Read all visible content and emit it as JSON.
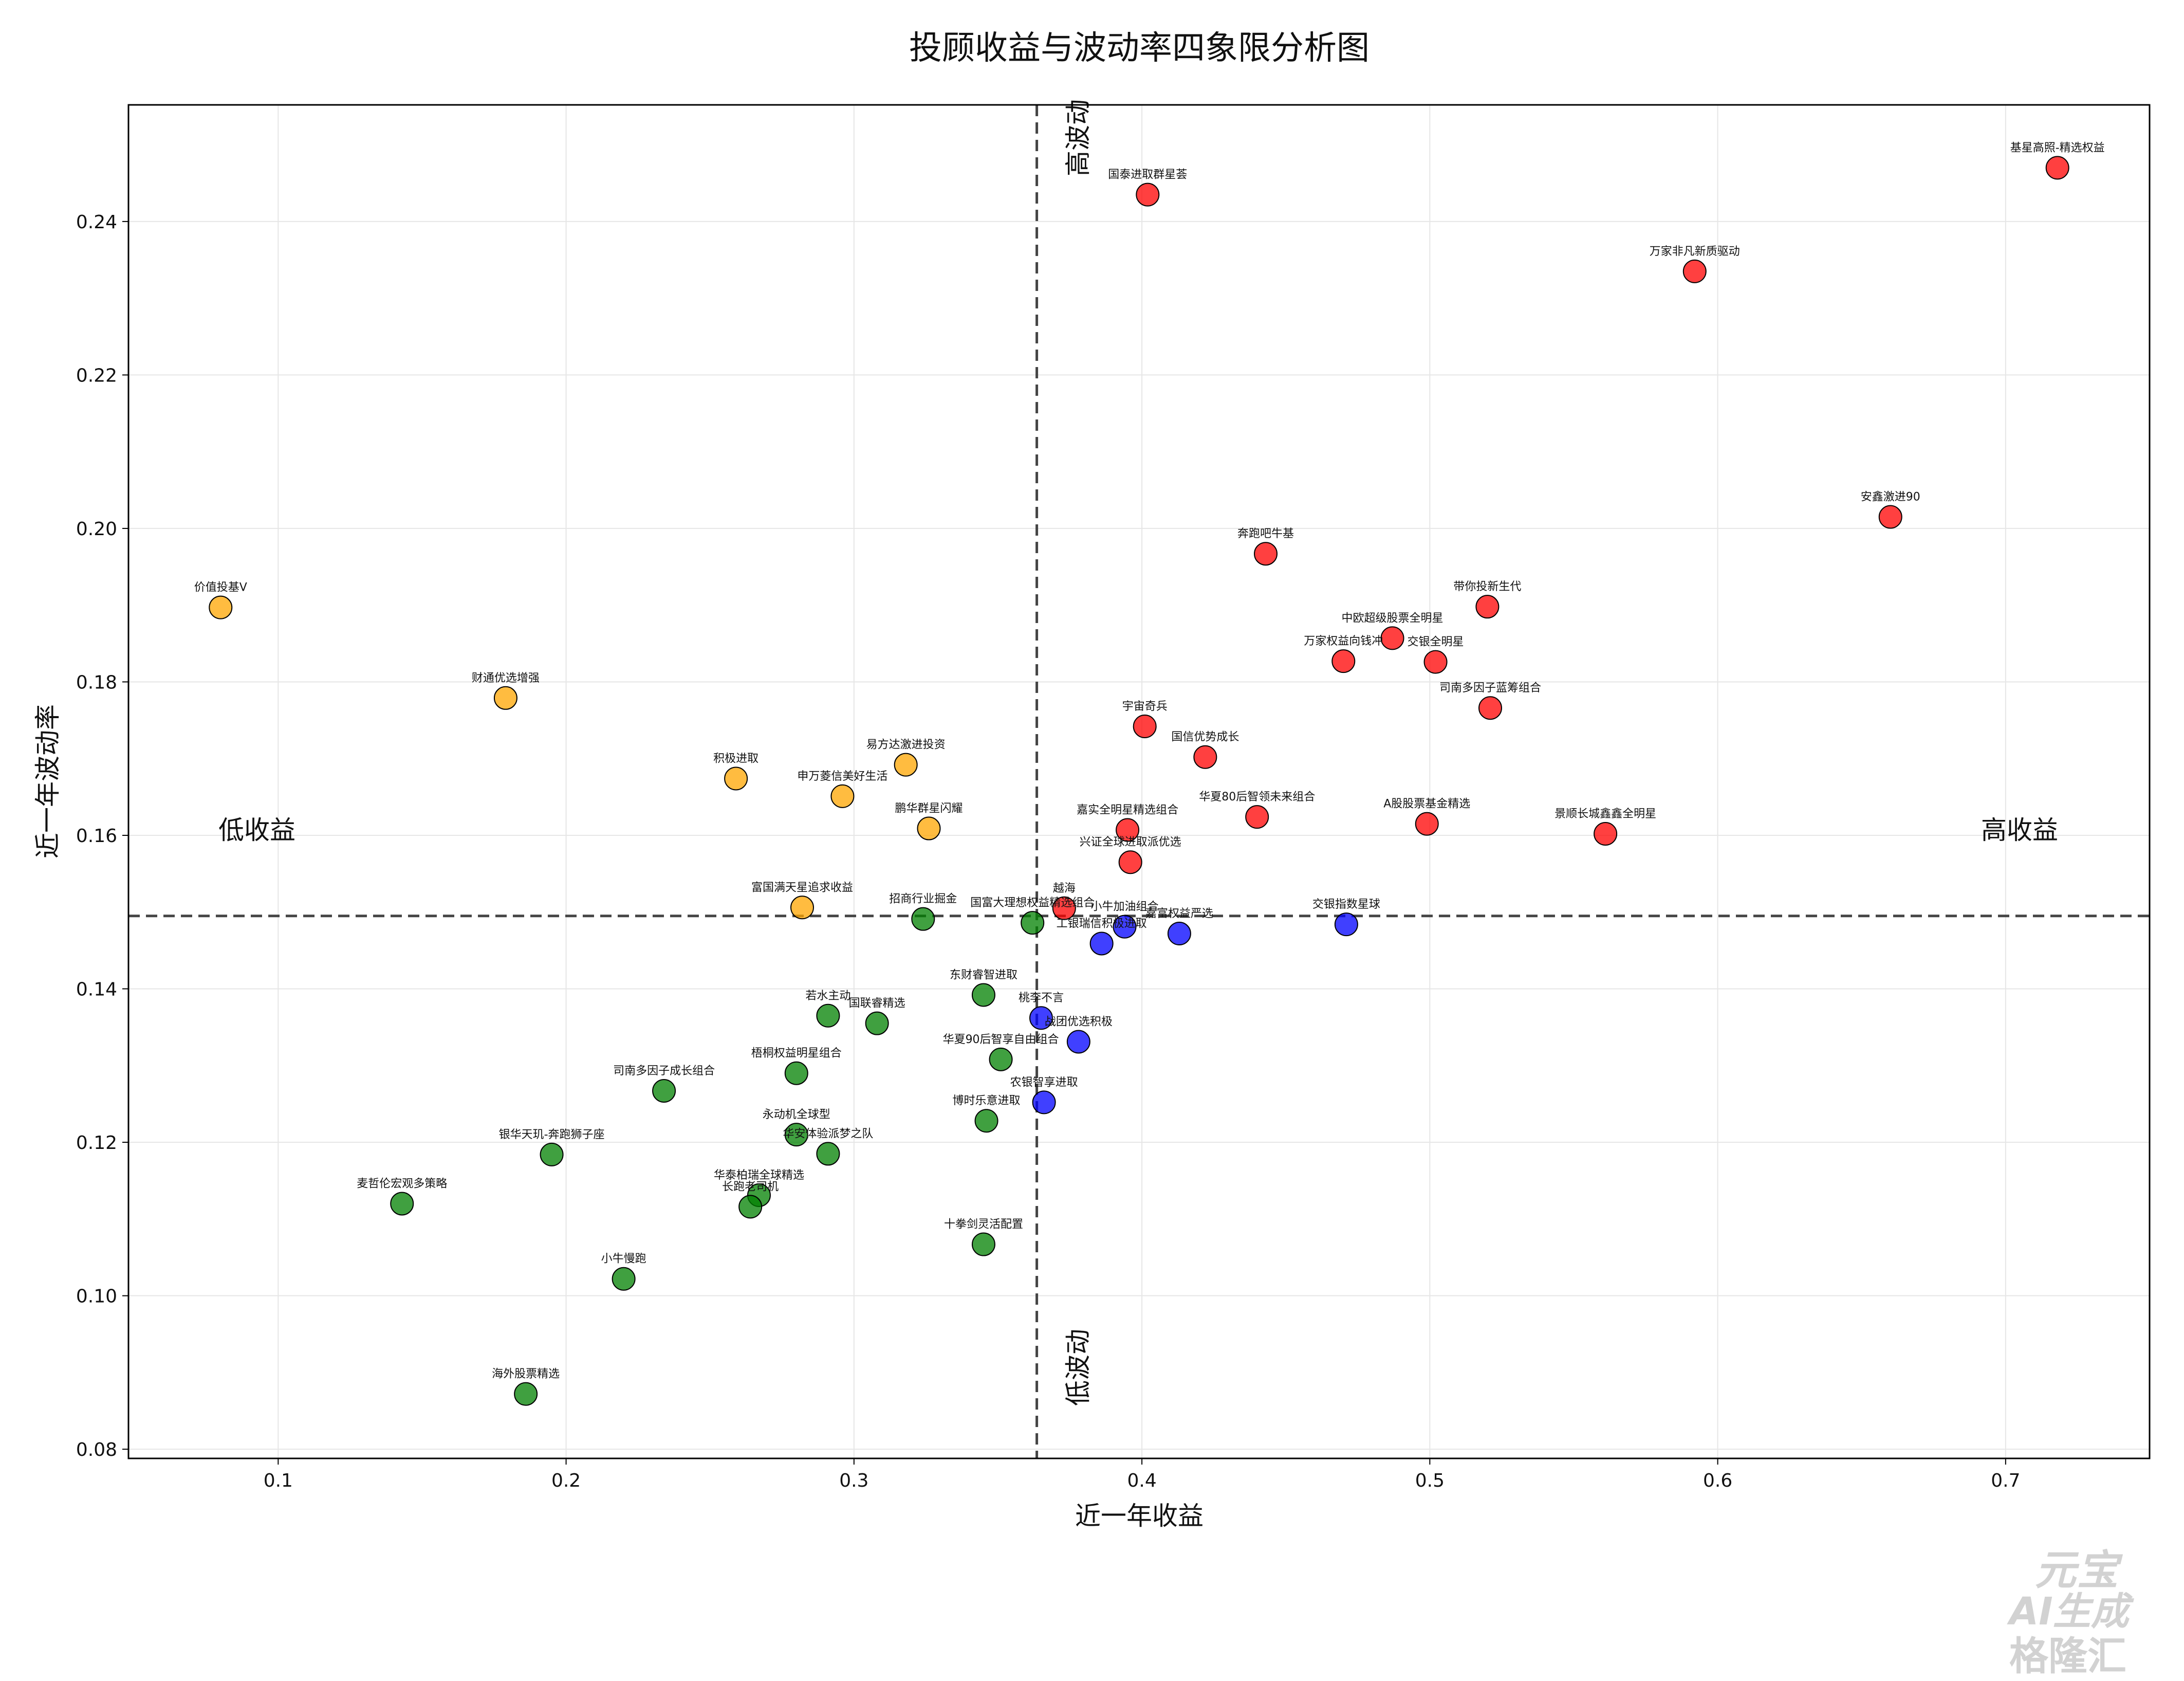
{
  "chart_data": {
    "type": "scatter",
    "title": "投顾收益与波动率四象限分析图",
    "xlabel": "近一年收益",
    "ylabel": "近一年波动率",
    "xlim": [
      0.048,
      0.75
    ],
    "ylim": [
      0.0788,
      0.2552
    ],
    "xticks": [
      0.1,
      0.2,
      0.3,
      0.4,
      0.5,
      0.6,
      0.7
    ],
    "xtick_labels": [
      "0.1",
      "0.2",
      "0.3",
      "0.4",
      "0.5",
      "0.6",
      "0.7"
    ],
    "yticks": [
      0.08,
      0.1,
      0.12,
      0.14,
      0.16,
      0.18,
      0.2,
      0.22,
      0.24
    ],
    "ytick_labels": [
      "0.08",
      "0.10",
      "0.12",
      "0.14",
      "0.16",
      "0.18",
      "0.20",
      "0.22",
      "0.24"
    ],
    "grid": true,
    "reference_lines": {
      "x": 0.3635,
      "y": 0.1495
    },
    "quadrant_labels": {
      "left": "低收益",
      "right": "高收益",
      "top": "高波动",
      "bottom": "低波动"
    },
    "colors": {
      "high_return_high_vol": "#ff0000",
      "high_return_low_vol": "#0000ff",
      "low_return_high_vol": "#ffa500",
      "low_return_low_vol": "#008000"
    },
    "points": [
      {
        "label": "基星高照-精选权益",
        "x": 0.718,
        "y": 0.247,
        "group": "high_return_high_vol"
      },
      {
        "label": "国泰进取群星荟",
        "x": 0.402,
        "y": 0.2435,
        "group": "high_return_high_vol"
      },
      {
        "label": "万家非凡新质驱动",
        "x": 0.592,
        "y": 0.2335,
        "group": "high_return_high_vol"
      },
      {
        "label": "安鑫激进90",
        "x": 0.66,
        "y": 0.2015,
        "group": "high_return_high_vol"
      },
      {
        "label": "奔跑吧牛基",
        "x": 0.443,
        "y": 0.1967,
        "group": "high_return_high_vol"
      },
      {
        "label": "带你投新生代",
        "x": 0.52,
        "y": 0.1898,
        "group": "high_return_high_vol"
      },
      {
        "label": "中欧超级股票全明星",
        "x": 0.487,
        "y": 0.1857,
        "group": "high_return_high_vol"
      },
      {
        "label": "万家权益向钱冲",
        "x": 0.47,
        "y": 0.1827,
        "group": "high_return_high_vol"
      },
      {
        "label": "交银全明星",
        "x": 0.502,
        "y": 0.1826,
        "group": "high_return_high_vol"
      },
      {
        "label": "司南多因子蓝筹组合",
        "x": 0.521,
        "y": 0.1766,
        "group": "high_return_high_vol"
      },
      {
        "label": "宇宙奇兵",
        "x": 0.401,
        "y": 0.1742,
        "group": "high_return_high_vol"
      },
      {
        "label": "国信优势成长",
        "x": 0.422,
        "y": 0.1702,
        "group": "high_return_high_vol"
      },
      {
        "label": "华夏80后智领未来组合",
        "x": 0.44,
        "y": 0.1624,
        "group": "high_return_high_vol"
      },
      {
        "label": "A股股票基金精选",
        "x": 0.499,
        "y": 0.1615,
        "group": "high_return_high_vol"
      },
      {
        "label": "景顺长城鑫鑫全明星",
        "x": 0.561,
        "y": 0.1602,
        "group": "high_return_high_vol"
      },
      {
        "label": "嘉实全明星精选组合",
        "x": 0.395,
        "y": 0.1607,
        "group": "high_return_high_vol"
      },
      {
        "label": "兴证全球进取派优选",
        "x": 0.396,
        "y": 0.1565,
        "group": "high_return_high_vol"
      },
      {
        "label": "越海",
        "x": 0.373,
        "y": 0.1505,
        "group": "high_return_high_vol"
      },
      {
        "label": "价值投基V",
        "x": 0.08,
        "y": 0.1897,
        "group": "low_return_high_vol"
      },
      {
        "label": "财通优选增强",
        "x": 0.179,
        "y": 0.1779,
        "group": "low_return_high_vol"
      },
      {
        "label": "易方达激进投资",
        "x": 0.318,
        "y": 0.1692,
        "group": "low_return_high_vol"
      },
      {
        "label": "积极进取",
        "x": 0.259,
        "y": 0.1674,
        "group": "low_return_high_vol"
      },
      {
        "label": "申万菱信美好生活",
        "x": 0.296,
        "y": 0.1651,
        "group": "low_return_high_vol"
      },
      {
        "label": "鹏华群星闪耀",
        "x": 0.326,
        "y": 0.1609,
        "group": "low_return_high_vol"
      },
      {
        "label": "富国满天星追求收益",
        "x": 0.282,
        "y": 0.1506,
        "group": "low_return_high_vol"
      },
      {
        "label": "交银指数星球",
        "x": 0.471,
        "y": 0.1484,
        "group": "high_return_low_vol"
      },
      {
        "label": "小牛加油组合",
        "x": 0.394,
        "y": 0.1481,
        "group": "high_return_low_vol"
      },
      {
        "label": "嘉富权益严选",
        "x": 0.413,
        "y": 0.1472,
        "group": "high_return_low_vol"
      },
      {
        "label": "工银瑞信积极进取",
        "x": 0.386,
        "y": 0.1459,
        "group": "high_return_low_vol"
      },
      {
        "label": "桃李不言",
        "x": 0.365,
        "y": 0.1362,
        "group": "high_return_low_vol"
      },
      {
        "label": "战团优选积极",
        "x": 0.378,
        "y": 0.1331,
        "group": "high_return_low_vol"
      },
      {
        "label": "农银智享进取",
        "x": 0.366,
        "y": 0.1252,
        "group": "high_return_low_vol"
      },
      {
        "label": "招商行业掘金",
        "x": 0.324,
        "y": 0.1491,
        "group": "low_return_low_vol"
      },
      {
        "label": "国富大理想权益精选组合",
        "x": 0.362,
        "y": 0.1486,
        "group": "low_return_low_vol"
      },
      {
        "label": "东财睿智进取",
        "x": 0.345,
        "y": 0.1392,
        "group": "low_return_low_vol"
      },
      {
        "label": "若水主动",
        "x": 0.291,
        "y": 0.1365,
        "group": "low_return_low_vol"
      },
      {
        "label": "国联睿精选",
        "x": 0.308,
        "y": 0.1355,
        "group": "low_return_low_vol"
      },
      {
        "label": "华夏90后智享自由组合",
        "x": 0.351,
        "y": 0.1308,
        "group": "low_return_low_vol"
      },
      {
        "label": "梧桐权益明星组合",
        "x": 0.28,
        "y": 0.129,
        "group": "low_return_low_vol"
      },
      {
        "label": "司南多因子成长组合",
        "x": 0.234,
        "y": 0.1267,
        "group": "low_return_low_vol"
      },
      {
        "label": "博时乐意进取",
        "x": 0.346,
        "y": 0.1228,
        "group": "low_return_low_vol"
      },
      {
        "label": "永动机全球型",
        "x": 0.28,
        "y": 0.121,
        "group": "low_return_low_vol"
      },
      {
        "label": "华安体验派梦之队",
        "x": 0.291,
        "y": 0.1185,
        "group": "low_return_low_vol"
      },
      {
        "label": "银华天玑-奔跑狮子座",
        "x": 0.195,
        "y": 0.1184,
        "group": "low_return_low_vol"
      },
      {
        "label": "华泰柏瑞全球精选",
        "x": 0.267,
        "y": 0.1131,
        "group": "low_return_low_vol"
      },
      {
        "label": "长跑老司机",
        "x": 0.264,
        "y": 0.1116,
        "group": "low_return_low_vol"
      },
      {
        "label": "麦哲伦宏观多策略",
        "x": 0.143,
        "y": 0.112,
        "group": "low_return_low_vol"
      },
      {
        "label": "十拳剑灵活配置",
        "x": 0.345,
        "y": 0.1067,
        "group": "low_return_low_vol"
      },
      {
        "label": "小牛慢跑",
        "x": 0.22,
        "y": 0.1022,
        "group": "low_return_low_vol"
      },
      {
        "label": "海外股票精选",
        "x": 0.186,
        "y": 0.0872,
        "group": "low_return_low_vol"
      }
    ]
  },
  "watermark": {
    "line1": "元宝",
    "line2": "AI生成",
    "line3": "格隆汇"
  }
}
